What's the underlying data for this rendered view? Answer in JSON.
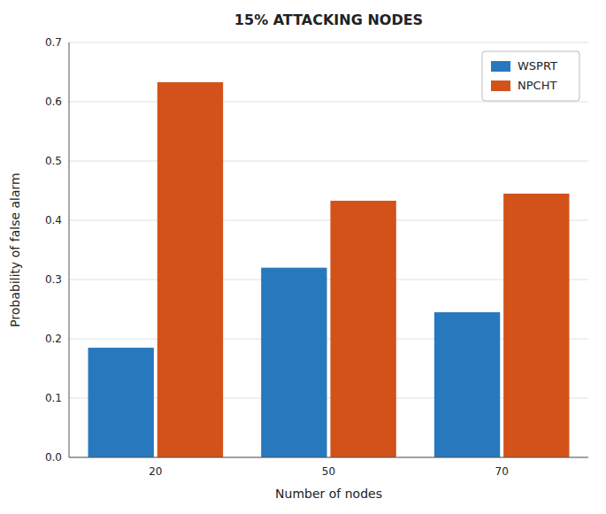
{
  "chart_data": {
    "type": "bar",
    "title": "15% ATTACKING NODES",
    "xlabel": "Number of nodes",
    "ylabel": "Probability of false alarm",
    "categories": [
      "20",
      "50",
      "70"
    ],
    "series": [
      {
        "name": "WSPRT",
        "color": "#2878BE",
        "values": [
          0.185,
          0.32,
          0.245
        ]
      },
      {
        "name": "NPCHT",
        "color": "#D2521A",
        "values": [
          0.633,
          0.433,
          0.445
        ]
      }
    ],
    "ylim": [
      0,
      0.7
    ],
    "yticks": [
      {
        "value": 0,
        "label": "0.0"
      },
      0.1,
      0.2,
      0.3,
      0.4,
      0.5,
      0.6,
      0.7
    ],
    "grid": true,
    "legend": "upper right"
  }
}
